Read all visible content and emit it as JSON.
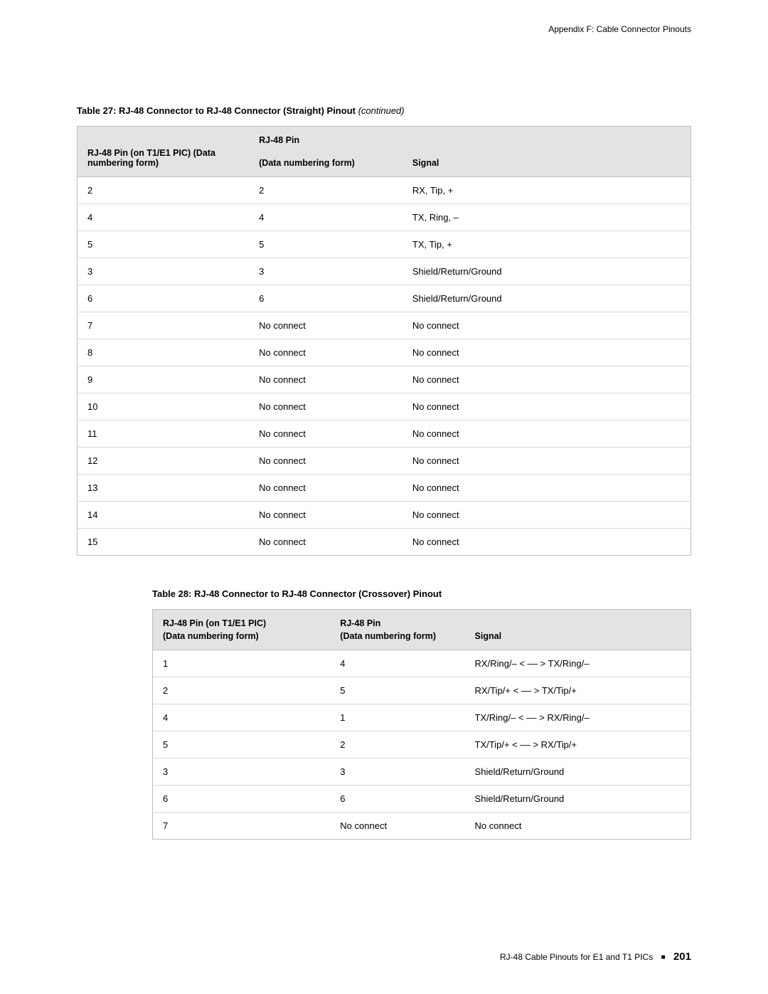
{
  "header_right": "Appendix F: Cable Connector Pinouts",
  "table27": {
    "caption_main": "Table 27: RJ-48 Connector to RJ-48 Connector (Straight) Pinout ",
    "caption_continued": "(continued)",
    "head_top_col2": "RJ-48 Pin",
    "head_col1": "RJ-48 Pin (on T1/E1 PIC) (Data numbering form)",
    "head_col2": "(Data numbering form)",
    "head_col3": "Signal",
    "rows": [
      {
        "a": "2",
        "b": "2",
        "c": "RX, Tip, +"
      },
      {
        "a": "4",
        "b": "4",
        "c": "TX, Ring, –"
      },
      {
        "a": "5",
        "b": "5",
        "c": "TX, Tip, +"
      },
      {
        "a": "3",
        "b": "3",
        "c": "Shield/Return/Ground"
      },
      {
        "a": "6",
        "b": "6",
        "c": "Shield/Return/Ground"
      },
      {
        "a": "7",
        "b": "No connect",
        "c": "No connect"
      },
      {
        "a": "8",
        "b": "No connect",
        "c": "No connect"
      },
      {
        "a": "9",
        "b": "No connect",
        "c": "No connect"
      },
      {
        "a": "10",
        "b": "No connect",
        "c": "No connect"
      },
      {
        "a": "11",
        "b": "No connect",
        "c": "No connect"
      },
      {
        "a": "12",
        "b": "No connect",
        "c": "No connect"
      },
      {
        "a": "13",
        "b": "No connect",
        "c": "No connect"
      },
      {
        "a": "14",
        "b": "No connect",
        "c": "No connect"
      },
      {
        "a": "15",
        "b": "No connect",
        "c": "No connect"
      }
    ]
  },
  "table28": {
    "caption": "Table 28: RJ-48 Connector to RJ-48 Connector (Crossover) Pinout",
    "head_col1_line1": "RJ-48 Pin (on T1/E1 PIC)",
    "head_col1_line2": "(Data numbering form)",
    "head_top_col2": "RJ-48 Pin",
    "head_col2": "(Data numbering form)",
    "head_col3": "Signal",
    "rows": [
      {
        "a": "1",
        "b": "4",
        "c": "RX/Ring/–  < –– > TX/Ring/–"
      },
      {
        "a": "2",
        "b": "5",
        "c": "RX/Tip/+  < –– > TX/Tip/+"
      },
      {
        "a": "4",
        "b": "1",
        "c": "TX/Ring/–  < –– > RX/Ring/–"
      },
      {
        "a": "5",
        "b": "2",
        "c": "TX/Tip/+  < –– > RX/Tip/+"
      },
      {
        "a": "3",
        "b": "3",
        "c": "Shield/Return/Ground"
      },
      {
        "a": "6",
        "b": "6",
        "c": "Shield/Return/Ground"
      },
      {
        "a": "7",
        "b": "No connect",
        "c": "No connect"
      }
    ]
  },
  "footer": {
    "text": "RJ-48 Cable Pinouts for E1 and T1 PICs",
    "page_number": "201"
  }
}
